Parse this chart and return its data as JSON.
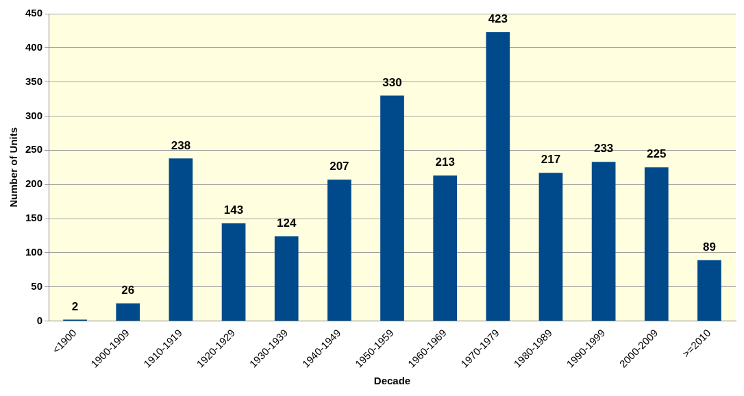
{
  "chart_data": {
    "type": "bar",
    "xlabel": "Decade",
    "ylabel": "Number of Units",
    "categories": [
      "<1900",
      "1900-1909",
      "1910-1919",
      "1920-1929",
      "1930-1939",
      "1940-1949",
      "1950-1959",
      "1960-1969",
      "1970-1979",
      "1980-1989",
      "1990-1999",
      "2000-2009",
      ">=2010"
    ],
    "values": [
      2,
      26,
      238,
      143,
      124,
      207,
      330,
      213,
      423,
      217,
      233,
      225,
      89
    ],
    "color": "#004a8c",
    "ylim": [
      0,
      450
    ],
    "yticks": [
      0,
      50,
      100,
      150,
      200,
      250,
      300,
      350,
      400,
      450
    ],
    "grid": "y",
    "legend": false,
    "data_labels": true
  }
}
